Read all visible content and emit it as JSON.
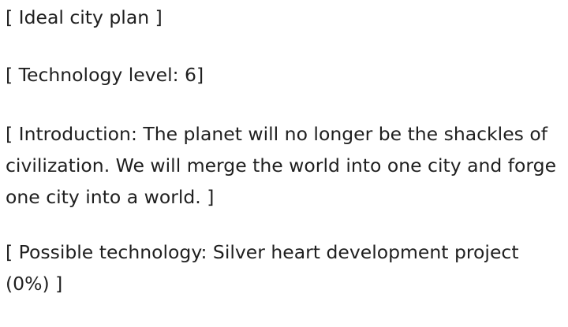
{
  "document": {
    "paragraphs": [
      "[ Ideal city plan ]",
      "[ Technology level: 6]",
      "[ Introduction: The planet will no longer be the shackles of civilization. We will merge the world into one city and forge one city into a world. ]",
      "[ Possible technology: Silver heart development project (0%) ]"
    ]
  }
}
